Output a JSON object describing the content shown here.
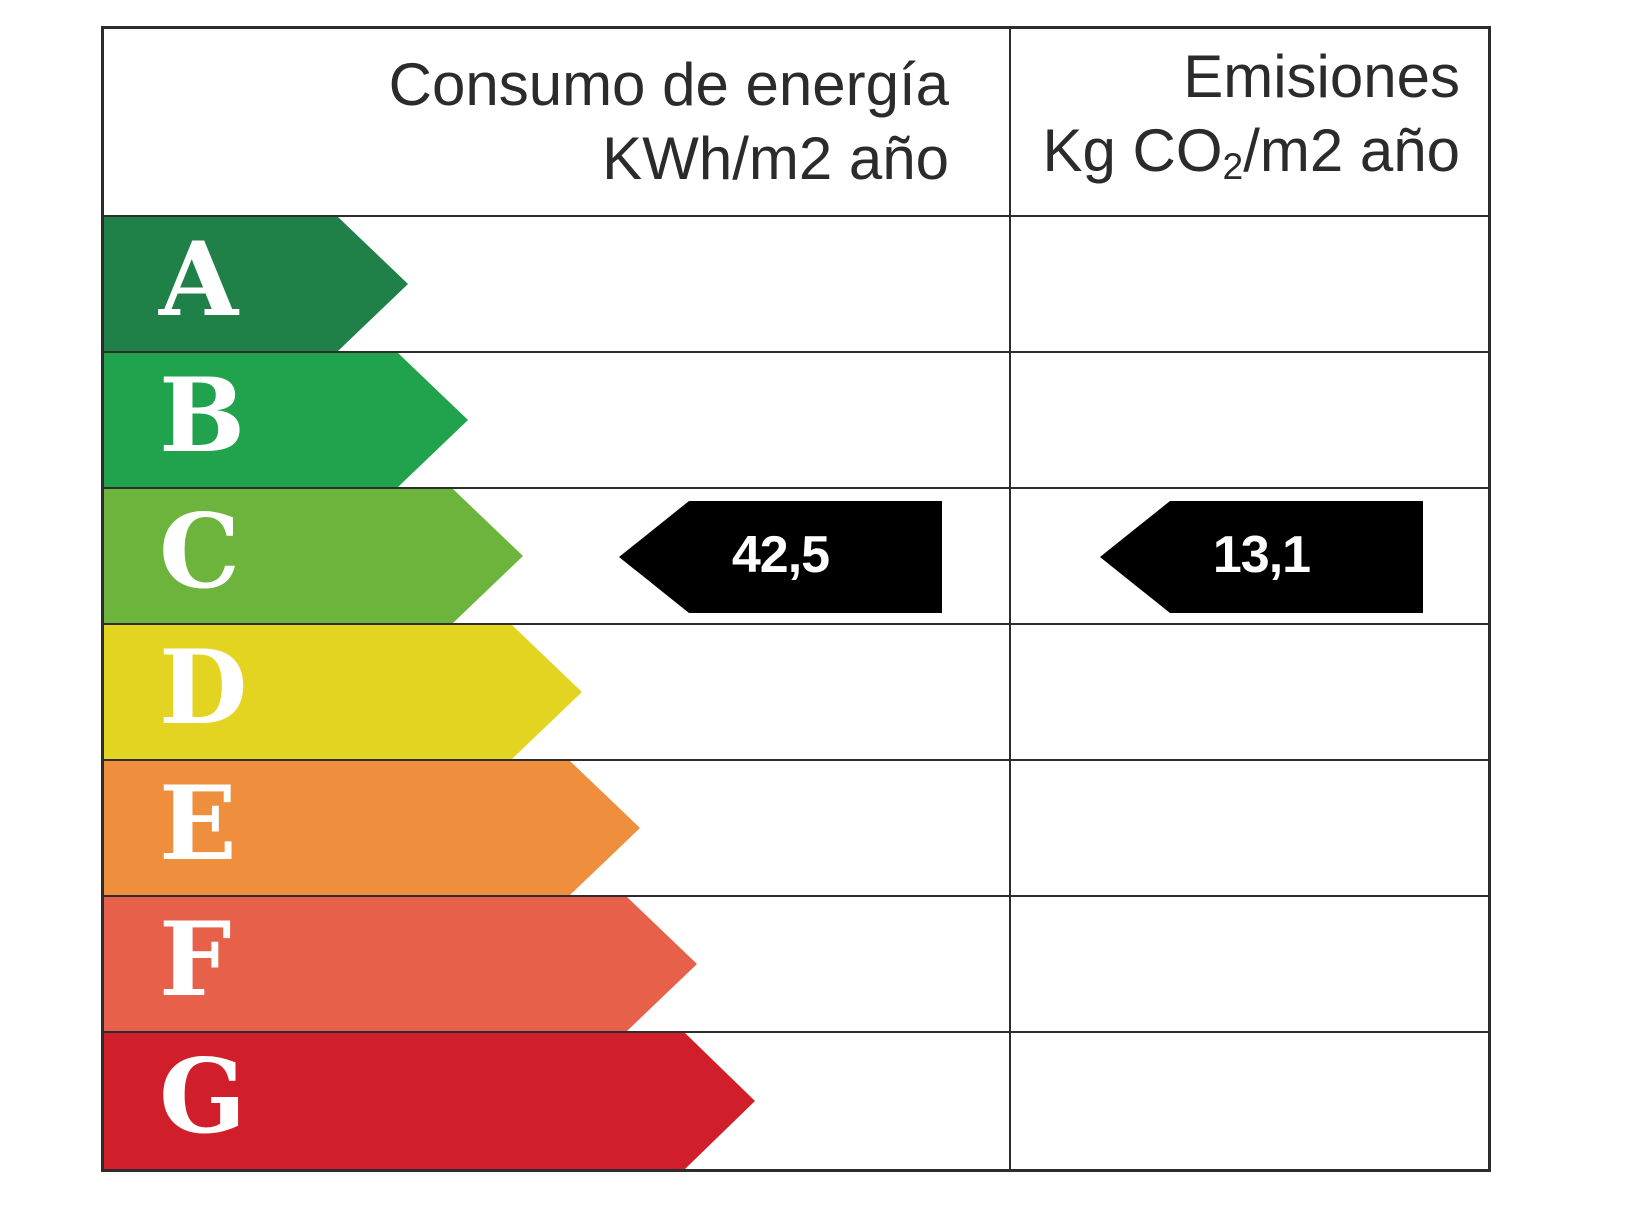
{
  "header": {
    "consumption": {
      "line1": "Consumo de energía",
      "line2": "KWh/m2 año"
    },
    "emissions": {
      "line1": "Emisiones",
      "line2_prefix": "Kg CO",
      "line2_sub": "2",
      "line2_suffix": "/m2 año"
    }
  },
  "ratings": [
    {
      "letter": "A",
      "color": "#1f8048"
    },
    {
      "letter": "B",
      "color": "#21a24d"
    },
    {
      "letter": "C",
      "color": "#6db43d",
      "consumption_value": "42,5",
      "emissions_value": "13,1"
    },
    {
      "letter": "D",
      "color": "#e4d422"
    },
    {
      "letter": "E",
      "color": "#ef8f3d"
    },
    {
      "letter": "F",
      "color": "#e6604a"
    },
    {
      "letter": "G",
      "color": "#d01f2b"
    }
  ],
  "colors": {
    "value_arrow_bg": "#000000",
    "value_arrow_text": "#ffffff",
    "grid_border": "#2d2d2d",
    "header_text": "#2b2b2b",
    "letter_text": "#ffffff"
  },
  "chart_data": {
    "type": "table",
    "description": "Spanish energy efficiency rating label with two indicator columns",
    "categories": [
      "A",
      "B",
      "C",
      "D",
      "E",
      "F",
      "G"
    ],
    "columns": [
      "Consumo de energía KWh/m2 año",
      "Emisiones Kg CO2/m2 año"
    ],
    "selected_rating": "C",
    "consumption_kwh_m2_year": 42.5,
    "emissions_kg_co2_m2_year": 13.1,
    "value_labels": {
      "consumption": "42,5",
      "emissions": "13,1"
    },
    "category_colors": [
      "#1f8048",
      "#21a24d",
      "#6db43d",
      "#e4d422",
      "#ef8f3d",
      "#e6604a",
      "#d01f2b"
    ],
    "legend_position": "none",
    "grid": true
  }
}
